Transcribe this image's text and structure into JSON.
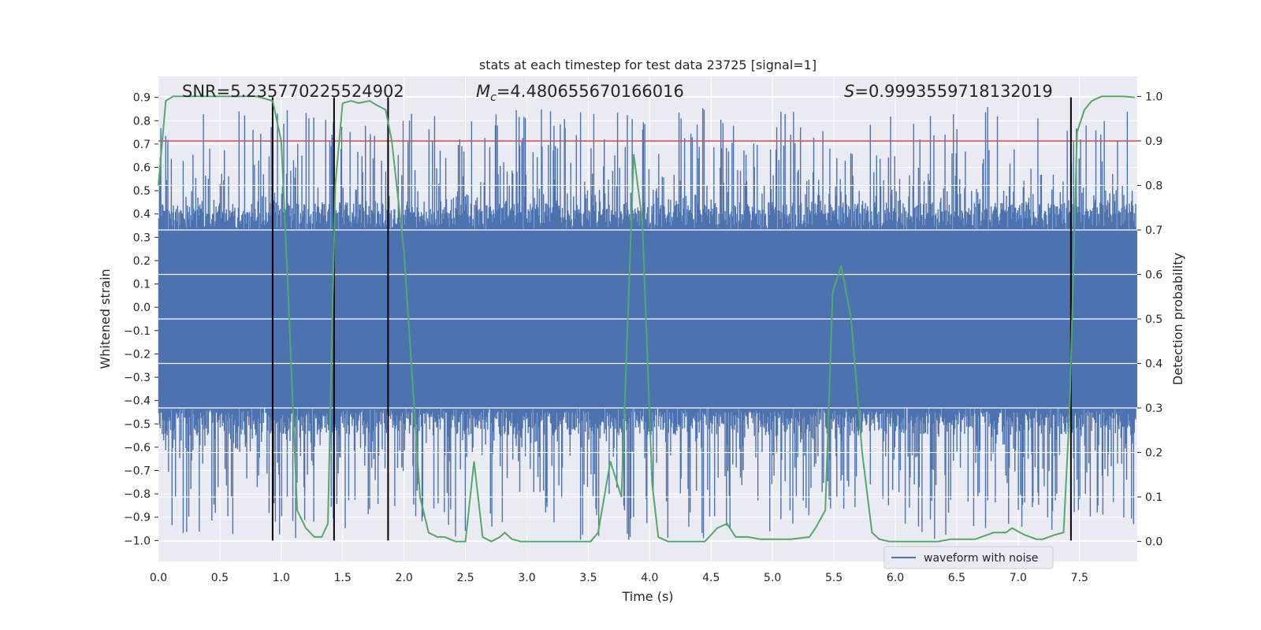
{
  "chart_data": {
    "type": "line",
    "title": "stats at each timestep for test data 23725 [signal=1]",
    "xlabel": "Time (s)",
    "ylabel_left": "Whitened strain",
    "ylabel_right": "Detection probability",
    "xlim": [
      0,
      7.97
    ],
    "ylim_left": [
      -1.09,
      0.99
    ],
    "ylim_right": [
      -0.045,
      1.045
    ],
    "x_ticks": [
      0.0,
      0.5,
      1.0,
      1.5,
      2.0,
      2.5,
      3.0,
      3.5,
      4.0,
      4.5,
      5.0,
      5.5,
      6.0,
      6.5,
      7.0,
      7.5
    ],
    "x_tick_labels": [
      "0.0",
      "0.5",
      "1.0",
      "1.5",
      "2.0",
      "2.5",
      "3.0",
      "3.5",
      "4.0",
      "4.5",
      "5.0",
      "5.5",
      "6.0",
      "6.5",
      "7.0",
      "7.5"
    ],
    "y_left_ticks": [
      0.9,
      0.8,
      0.7,
      0.6,
      0.5,
      0.4,
      0.3,
      0.2,
      0.1,
      0.0,
      -0.1,
      -0.2,
      -0.3,
      -0.4,
      -0.5,
      -0.6,
      -0.7,
      -0.8,
      -0.9,
      -1.0
    ],
    "y_left_tick_labels": [
      "0.9",
      "0.8",
      "0.7",
      "0.6",
      "0.5",
      "0.4",
      "0.3",
      "0.2",
      "0.1",
      "0.0",
      "−0.1",
      "−0.2",
      "−0.3",
      "−0.4",
      "−0.5",
      "−0.6",
      "−0.7",
      "−0.8",
      "−0.9",
      "−1.0"
    ],
    "y_right_ticks": [
      1.0,
      0.9,
      0.8,
      0.7,
      0.6,
      0.5,
      0.4,
      0.3,
      0.2,
      0.1,
      0.0
    ],
    "y_right_tick_labels": [
      "1.0",
      "0.9",
      "0.8",
      "0.7",
      "0.6",
      "0.5",
      "0.4",
      "0.3",
      "0.2",
      "0.1",
      "0.0"
    ],
    "annotations": {
      "snr": "SNR=5.235770225524902",
      "mc": "M",
      "mc_sub": "c",
      "mc_value": "=4.480655670166016",
      "s": "S",
      "s_value": "=0.9993559718132019"
    },
    "legend": {
      "label": "waveform with noise",
      "placement": "lower-right"
    },
    "threshold": {
      "value": 0.9,
      "axis": "right",
      "color": "#c44e52"
    },
    "vertical_markers": [
      0.93,
      1.43,
      1.87,
      7.43
    ],
    "waveform": {
      "name": "waveform with noise",
      "color": "#4c72b0",
      "samples": 1400,
      "envelope_core": 0.33,
      "max_peak": 0.86,
      "min_trough": -1.0
    },
    "series": [
      {
        "name": "detection probability",
        "axis": "right",
        "color": "#55a868",
        "x": [
          0.0,
          0.06,
          0.12,
          0.3,
          0.6,
          0.8,
          0.93,
          1.0,
          1.05,
          1.13,
          1.2,
          1.27,
          1.33,
          1.38,
          1.44,
          1.5,
          1.57,
          1.63,
          1.72,
          1.78,
          1.85,
          1.9,
          2.0,
          2.13,
          2.2,
          2.27,
          2.33,
          2.42,
          2.5,
          2.57,
          2.64,
          2.71,
          2.78,
          2.82,
          2.88,
          2.95,
          3.05,
          3.15,
          3.25,
          3.35,
          3.45,
          3.52,
          3.58,
          3.68,
          3.77,
          3.87,
          3.94,
          4.02,
          4.07,
          4.15,
          4.22,
          4.35,
          4.45,
          4.55,
          4.63,
          4.7,
          4.8,
          4.9,
          5.0,
          5.15,
          5.3,
          5.35,
          5.43,
          5.49,
          5.56,
          5.64,
          5.73,
          5.81,
          5.87,
          5.95,
          6.05,
          6.2,
          6.35,
          6.45,
          6.55,
          6.65,
          6.75,
          6.8,
          6.9,
          6.95,
          7.05,
          7.15,
          7.2,
          7.3,
          7.37,
          7.42,
          7.48,
          7.54,
          7.6,
          7.68,
          7.75,
          7.85,
          7.95
        ],
        "values": [
          0.8,
          0.99,
          1.0,
          1.0,
          1.0,
          1.0,
          0.99,
          0.9,
          0.6,
          0.07,
          0.03,
          0.01,
          0.01,
          0.04,
          0.8,
          0.985,
          0.99,
          0.985,
          0.99,
          0.98,
          0.97,
          0.9,
          0.65,
          0.1,
          0.02,
          0.01,
          0.01,
          0.0,
          0.0,
          0.18,
          0.01,
          0.0,
          0.01,
          0.02,
          0.005,
          0.0,
          0.0,
          0.0,
          0.0,
          0.0,
          0.0,
          0.0,
          0.02,
          0.18,
          0.1,
          0.87,
          0.72,
          0.13,
          0.01,
          0.0,
          0.0,
          0.0,
          0.0,
          0.03,
          0.04,
          0.01,
          0.01,
          0.005,
          0.005,
          0.005,
          0.01,
          0.03,
          0.07,
          0.56,
          0.62,
          0.5,
          0.2,
          0.02,
          0.005,
          0.0,
          0.0,
          0.0,
          0.0,
          0.005,
          0.005,
          0.005,
          0.015,
          0.02,
          0.02,
          0.03,
          0.015,
          0.005,
          0.005,
          0.015,
          0.02,
          0.3,
          0.92,
          0.97,
          0.99,
          1.0,
          1.0,
          1.0,
          0.998
        ]
      }
    ]
  }
}
